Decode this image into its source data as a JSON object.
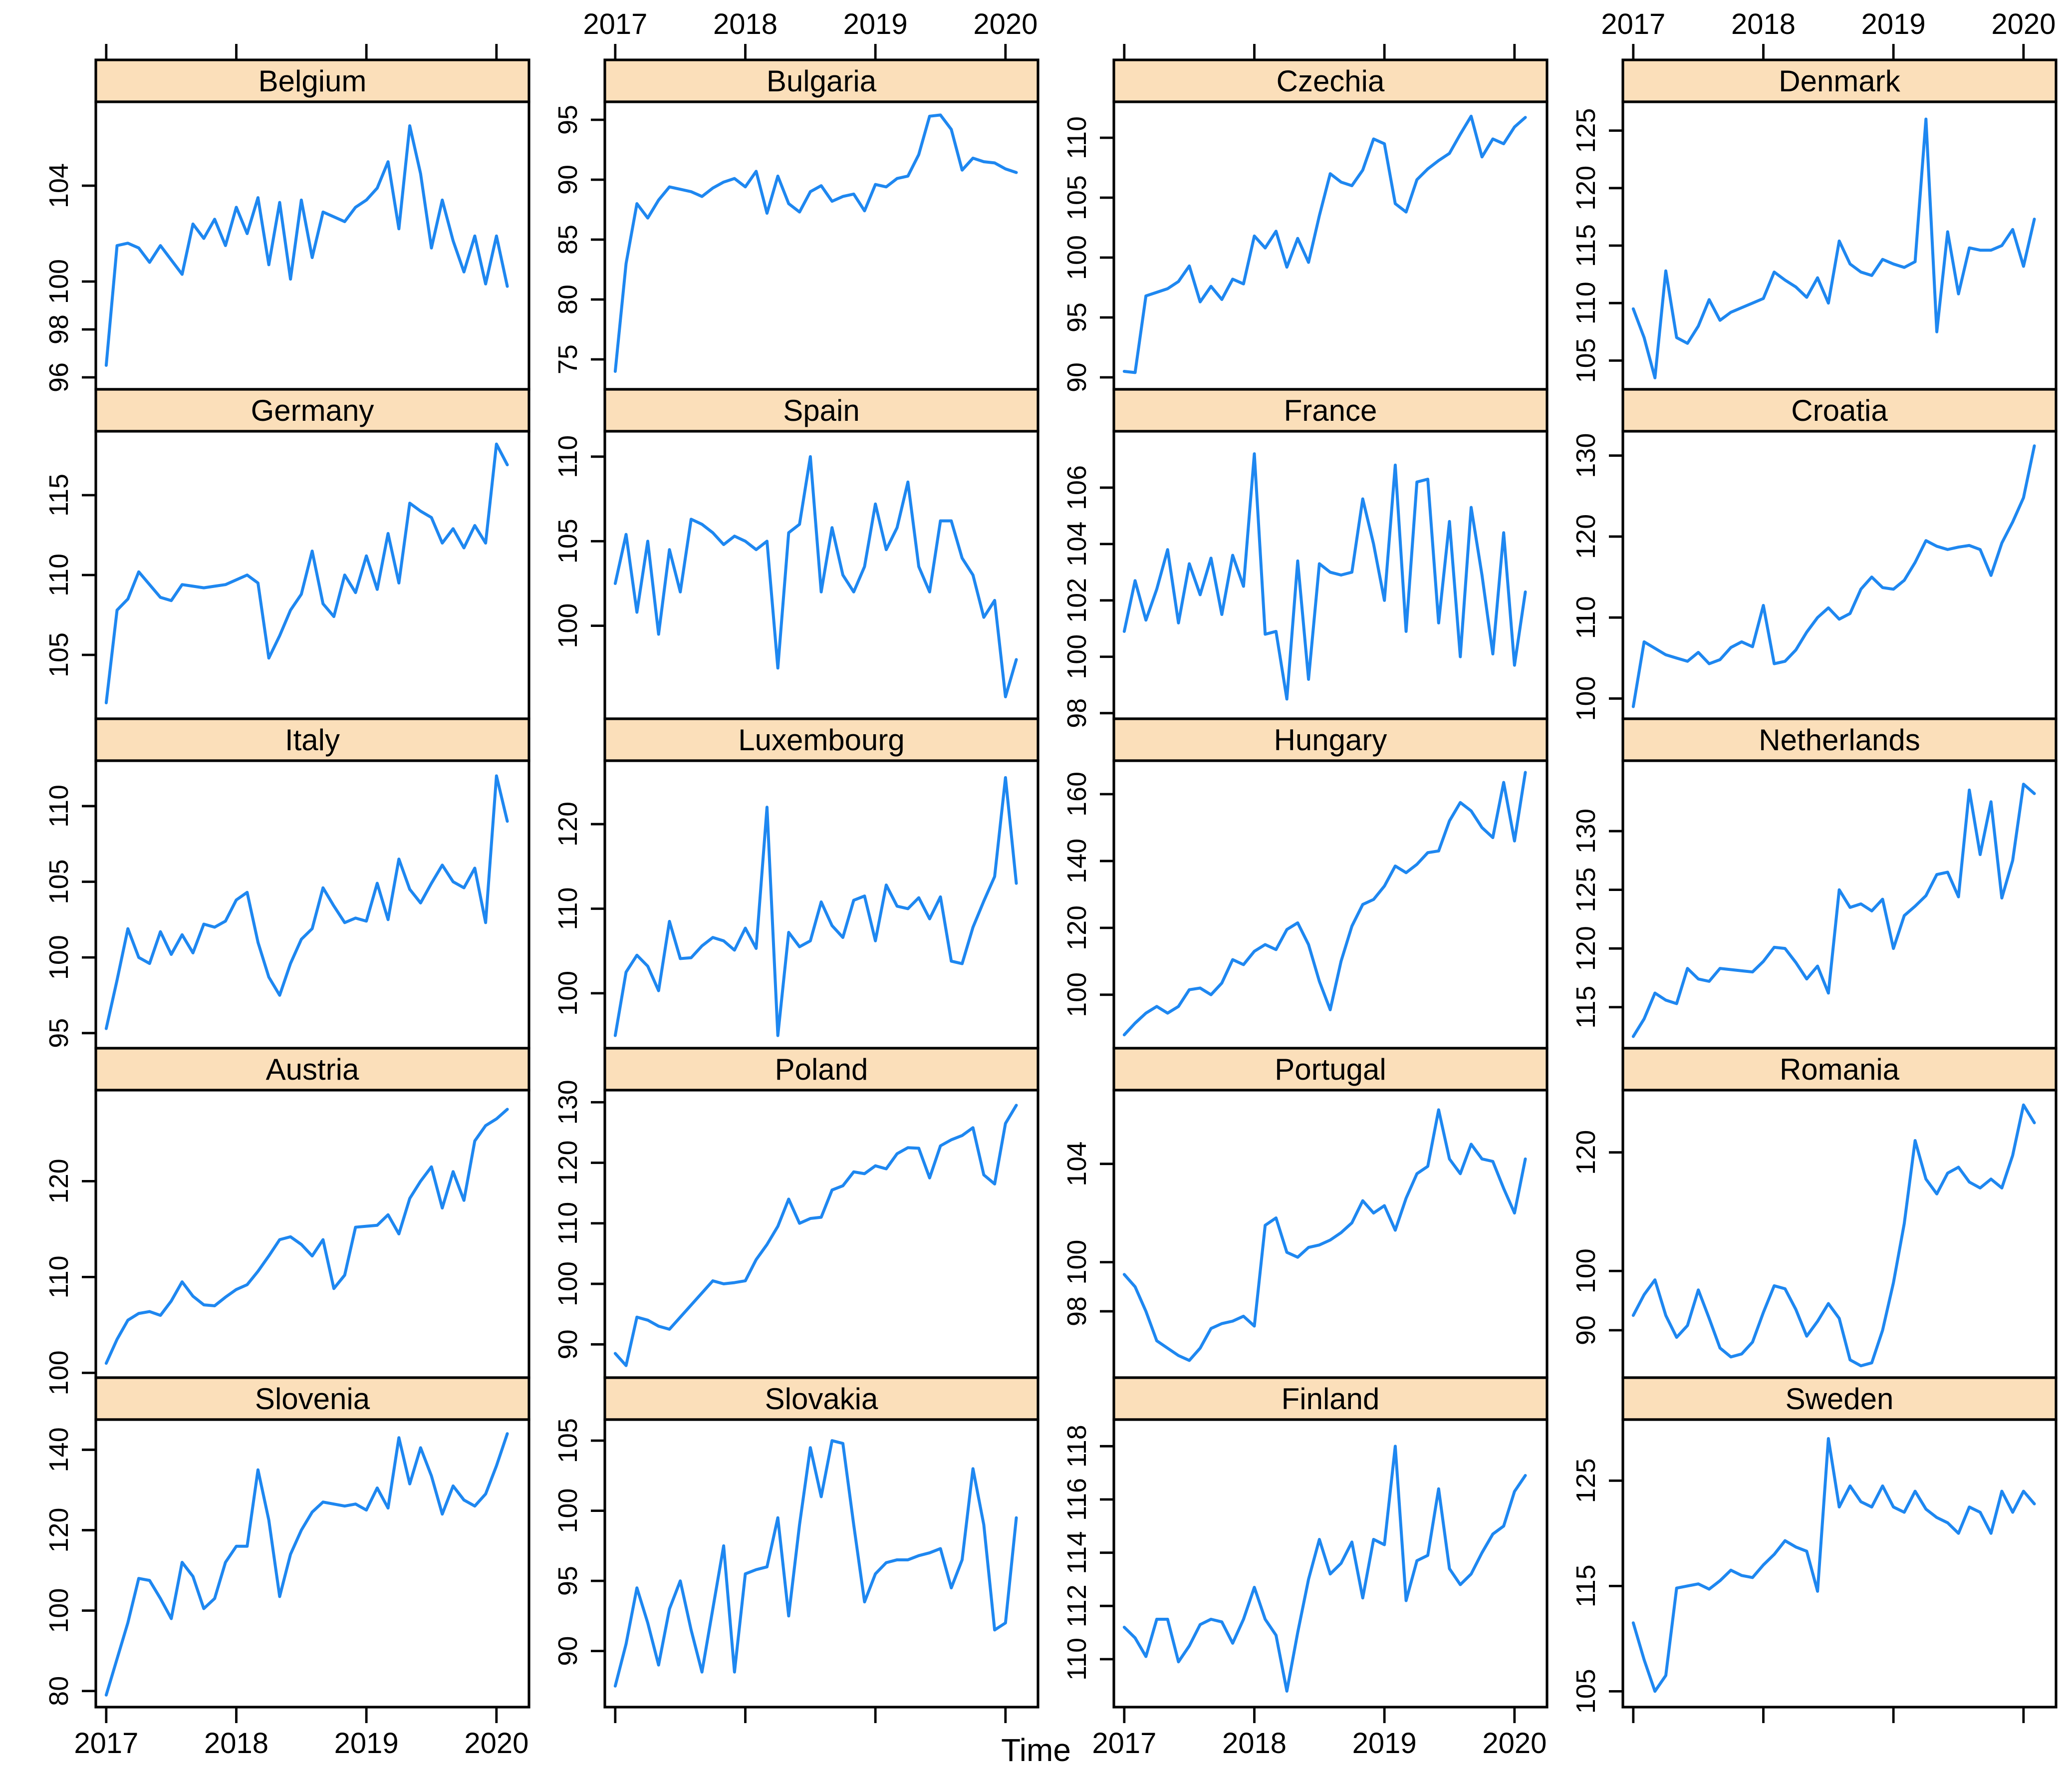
{
  "figure": {
    "xlabel": "Time",
    "background": "#ffffff"
  },
  "colors": {
    "line": "#1E87F0",
    "strip_fill": "#FBDFBA",
    "border": "#000000",
    "panel_fill": "#FFFFFF",
    "text": "#000000"
  },
  "chart_data": {
    "type": "line",
    "title": "",
    "xlabel": "Time",
    "ylabel": "",
    "legend": "none",
    "grid": false,
    "layout": {
      "columns": 4,
      "rows": 5
    },
    "x": {
      "start": 2017.0,
      "step": 0.0833333,
      "lim": [
        2016.92,
        2020.25
      ],
      "ticks": [
        2017,
        2018,
        2019,
        2020
      ],
      "tick_labels": [
        "2017",
        "2018",
        "2019",
        "2020"
      ],
      "top_labeled_columns": [
        1,
        3
      ],
      "bottom_labeled_columns": [
        0,
        2
      ]
    },
    "panels": [
      {
        "country": "Belgium",
        "ylim": [
          95.5,
          107.5
        ],
        "yticks": [
          96,
          98,
          100,
          104
        ],
        "values": [
          96.5,
          101.5,
          101.6,
          101.4,
          100.8,
          101.5,
          100.9,
          100.3,
          102.4,
          101.8,
          102.6,
          101.5,
          103.1,
          102.0,
          103.5,
          100.7,
          103.3,
          100.1,
          103.4,
          101.0,
          102.9,
          102.7,
          102.5,
          103.1,
          103.4,
          103.9,
          105.0,
          102.2,
          106.5,
          104.5,
          101.4,
          103.4,
          101.7,
          100.4,
          101.9,
          99.9,
          101.9,
          99.8
        ]
      },
      {
        "country": "Bulgaria",
        "ylim": [
          72.5,
          96.5
        ],
        "yticks": [
          75,
          80,
          85,
          90,
          95
        ],
        "values": [
          74.0,
          83.0,
          88.0,
          86.8,
          88.3,
          89.4,
          89.2,
          89.0,
          88.6,
          89.3,
          89.8,
          90.1,
          89.4,
          90.7,
          87.2,
          90.3,
          88.0,
          87.3,
          89.0,
          89.5,
          88.2,
          88.6,
          88.8,
          87.4,
          89.6,
          89.4,
          90.1,
          90.3,
          92.1,
          95.3,
          95.4,
          94.2,
          90.8,
          91.8,
          91.5,
          91.4,
          90.9,
          90.6
        ]
      },
      {
        "country": "Czechia",
        "ylim": [
          89.0,
          113.0
        ],
        "yticks": [
          90,
          95,
          100,
          105,
          110
        ],
        "values": [
          90.5,
          90.4,
          96.8,
          97.1,
          97.4,
          98.0,
          99.3,
          96.3,
          97.6,
          96.5,
          98.2,
          97.8,
          101.8,
          100.8,
          102.2,
          99.2,
          101.6,
          99.6,
          103.5,
          107.0,
          106.3,
          106.0,
          107.3,
          109.9,
          109.5,
          104.5,
          103.8,
          106.5,
          107.4,
          108.1,
          108.7,
          110.3,
          111.8,
          108.4,
          109.9,
          109.5,
          110.9,
          111.7
        ]
      },
      {
        "country": "Denmark",
        "ylim": [
          102.5,
          127.5
        ],
        "yticks": [
          105,
          110,
          115,
          120,
          125
        ],
        "values": [
          109.5,
          107.0,
          103.5,
          112.8,
          107.0,
          106.5,
          108.0,
          110.3,
          108.5,
          109.2,
          109.6,
          110.0,
          110.4,
          112.7,
          112.0,
          111.4,
          110.5,
          112.2,
          110.0,
          115.4,
          113.4,
          112.7,
          112.4,
          113.8,
          113.4,
          113.1,
          113.6,
          126.0,
          107.5,
          116.2,
          110.8,
          114.8,
          114.6,
          114.6,
          115.0,
          116.4,
          113.2,
          117.3
        ]
      },
      {
        "country": "Germany",
        "ylim": [
          101.0,
          119.0
        ],
        "yticks": [
          105,
          110,
          115
        ],
        "values": [
          102.0,
          107.8,
          108.5,
          110.2,
          109.4,
          108.6,
          108.4,
          109.4,
          109.3,
          109.2,
          109.3,
          109.4,
          109.7,
          110.0,
          109.5,
          104.8,
          106.2,
          107.8,
          108.8,
          111.5,
          108.2,
          107.4,
          110.0,
          108.9,
          111.2,
          109.1,
          112.6,
          109.5,
          114.5,
          114.0,
          113.6,
          112.0,
          112.9,
          111.7,
          113.1,
          112.0,
          118.2,
          116.9
        ]
      },
      {
        "country": "Spain",
        "ylim": [
          94.5,
          111.5
        ],
        "yticks": [
          100,
          105,
          110
        ],
        "values": [
          102.5,
          105.4,
          100.8,
          105.0,
          99.5,
          104.5,
          102.0,
          106.3,
          106.0,
          105.5,
          104.8,
          105.3,
          105.0,
          104.5,
          105.0,
          97.5,
          105.5,
          106.0,
          110.0,
          102.0,
          105.8,
          103.0,
          102.0,
          103.5,
          107.2,
          104.5,
          105.8,
          108.5,
          103.5,
          102.0,
          106.2,
          106.2,
          104.0,
          103.0,
          100.5,
          101.5,
          95.8,
          98.0
        ]
      },
      {
        "country": "France",
        "ylim": [
          97.8,
          108.0
        ],
        "yticks": [
          98,
          100,
          102,
          104,
          106
        ],
        "values": [
          100.9,
          102.7,
          101.3,
          102.4,
          103.8,
          101.2,
          103.3,
          102.2,
          103.5,
          101.5,
          103.6,
          102.5,
          107.2,
          100.8,
          100.9,
          98.5,
          103.4,
          99.2,
          103.3,
          103.0,
          102.9,
          103.0,
          105.6,
          104.0,
          102.0,
          106.8,
          100.9,
          106.2,
          106.3,
          101.2,
          104.8,
          100.0,
          105.3,
          102.9,
          100.1,
          104.4,
          99.7,
          102.3
        ]
      },
      {
        "country": "Croatia",
        "ylim": [
          97.5,
          133.0
        ],
        "yticks": [
          100,
          110,
          120,
          130
        ],
        "values": [
          99.0,
          107.0,
          106.2,
          105.4,
          105.0,
          104.6,
          105.7,
          104.3,
          104.8,
          106.3,
          107.0,
          106.4,
          111.5,
          104.3,
          104.6,
          106.0,
          108.2,
          110.0,
          111.2,
          109.8,
          110.5,
          113.5,
          115.0,
          113.7,
          113.5,
          114.6,
          116.8,
          119.5,
          118.8,
          118.4,
          118.7,
          118.9,
          118.4,
          115.2,
          119.2,
          121.8,
          124.8,
          131.2
        ]
      },
      {
        "country": "Italy",
        "ylim": [
          94.0,
          113.0
        ],
        "yticks": [
          95,
          100,
          105,
          110
        ],
        "values": [
          95.3,
          98.5,
          101.9,
          100.0,
          99.6,
          101.7,
          100.2,
          101.5,
          100.3,
          102.2,
          102.0,
          102.4,
          103.8,
          104.3,
          101.0,
          98.7,
          97.5,
          99.6,
          101.2,
          101.9,
          104.6,
          103.4,
          102.3,
          102.6,
          102.4,
          104.9,
          102.5,
          106.5,
          104.5,
          103.6,
          104.9,
          106.1,
          105.0,
          104.6,
          105.9,
          102.3,
          112.0,
          109.0
        ]
      },
      {
        "country": "Luxembourg",
        "ylim": [
          93.5,
          127.5
        ],
        "yticks": [
          100,
          110,
          120
        ],
        "values": [
          95.0,
          102.5,
          104.5,
          103.2,
          100.3,
          108.5,
          104.1,
          104.2,
          105.6,
          106.6,
          106.2,
          105.1,
          107.7,
          105.3,
          122.0,
          95.0,
          107.2,
          105.5,
          106.2,
          110.8,
          108.0,
          106.6,
          111.0,
          111.5,
          106.2,
          112.8,
          110.3,
          110.0,
          111.3,
          108.8,
          111.4,
          103.8,
          103.5,
          107.8,
          110.9,
          113.8,
          125.5,
          113.0
        ]
      },
      {
        "country": "Hungary",
        "ylim": [
          84.0,
          170.0
        ],
        "yticks": [
          100,
          120,
          140,
          160
        ],
        "values": [
          88.0,
          91.5,
          94.5,
          96.5,
          94.5,
          96.5,
          101.5,
          102.0,
          100.0,
          103.5,
          110.5,
          109.0,
          113.0,
          115.0,
          113.5,
          119.5,
          121.5,
          115.0,
          104.0,
          95.5,
          110.0,
          120.5,
          127.0,
          128.5,
          132.5,
          138.5,
          136.5,
          139.0,
          142.5,
          143.0,
          152.0,
          157.5,
          155.0,
          150.0,
          147.0,
          163.5,
          146.0,
          166.5
        ]
      },
      {
        "country": "Netherlands",
        "ylim": [
          111.5,
          136.0
        ],
        "yticks": [
          115,
          120,
          125,
          130
        ],
        "values": [
          112.5,
          114.0,
          116.2,
          115.6,
          115.3,
          118.3,
          117.4,
          117.2,
          118.3,
          118.2,
          118.1,
          118.0,
          118.9,
          120.1,
          120.0,
          118.8,
          117.4,
          118.5,
          116.2,
          125.0,
          123.5,
          123.8,
          123.2,
          124.2,
          120.0,
          122.8,
          123.6,
          124.5,
          126.3,
          126.5,
          124.4,
          133.5,
          128.0,
          132.5,
          124.3,
          127.5,
          134.0,
          133.2
        ]
      },
      {
        "country": "Austria",
        "ylim": [
          99.5,
          129.5
        ],
        "yticks": [
          100,
          110,
          120
        ],
        "values": [
          101.0,
          103.5,
          105.5,
          106.2,
          106.4,
          106.0,
          107.5,
          109.5,
          108.0,
          107.1,
          107.0,
          107.9,
          108.7,
          109.2,
          110.6,
          112.2,
          113.9,
          114.2,
          113.4,
          112.2,
          113.9,
          108.8,
          110.2,
          115.2,
          115.3,
          115.4,
          116.5,
          114.5,
          118.2,
          120.0,
          121.5,
          117.2,
          121.0,
          118.0,
          124.2,
          125.8,
          126.5,
          127.5
        ]
      },
      {
        "country": "Poland",
        "ylim": [
          84.5,
          132.0
        ],
        "yticks": [
          90,
          100,
          110,
          120,
          130
        ],
        "values": [
          88.5,
          86.5,
          94.5,
          94.0,
          93.0,
          92.5,
          94.5,
          96.5,
          98.5,
          100.5,
          100.0,
          100.2,
          100.5,
          104.0,
          106.5,
          109.5,
          114.0,
          110.0,
          110.8,
          111.0,
          115.5,
          116.2,
          118.5,
          118.2,
          119.5,
          119.0,
          121.5,
          122.5,
          122.4,
          117.5,
          122.8,
          123.8,
          124.5,
          125.8,
          118.0,
          116.5,
          126.5,
          129.5
        ]
      },
      {
        "country": "Portugal",
        "ylim": [
          95.3,
          107.0
        ],
        "yticks": [
          98,
          100,
          104
        ],
        "values": [
          99.5,
          99.0,
          98.0,
          96.8,
          96.5,
          96.2,
          96.0,
          96.5,
          97.3,
          97.5,
          97.6,
          97.8,
          97.4,
          101.5,
          101.8,
          100.4,
          100.2,
          100.6,
          100.7,
          100.9,
          101.2,
          101.6,
          102.5,
          102.0,
          102.3,
          101.3,
          102.6,
          103.6,
          103.9,
          106.2,
          104.2,
          103.6,
          104.8,
          104.2,
          104.1,
          103.0,
          102.0,
          104.2
        ]
      },
      {
        "country": "Romania",
        "ylim": [
          82.0,
          130.5
        ],
        "yticks": [
          90,
          100,
          120
        ],
        "values": [
          92.5,
          96.0,
          98.5,
          92.5,
          88.8,
          90.8,
          96.8,
          92.0,
          87.0,
          85.5,
          86.0,
          88.0,
          93.0,
          97.5,
          97.0,
          93.5,
          89.0,
          91.5,
          94.5,
          92.0,
          85.0,
          84.0,
          84.5,
          90.0,
          98.0,
          108.0,
          122.0,
          115.5,
          113.0,
          116.5,
          117.5,
          115.0,
          114.0,
          115.5,
          114.0,
          119.5,
          128.0,
          125.0
        ]
      },
      {
        "country": "Slovenia",
        "ylim": [
          76.0,
          147.5
        ],
        "yticks": [
          80,
          100,
          120,
          140
        ],
        "values": [
          79.0,
          88.0,
          97.0,
          108.0,
          107.5,
          103.0,
          98.0,
          112.0,
          108.5,
          100.5,
          103.0,
          112.0,
          116.0,
          116.0,
          135.0,
          122.5,
          103.5,
          114.0,
          120.0,
          124.5,
          127.0,
          126.5,
          126.0,
          126.5,
          125.0,
          130.5,
          125.5,
          143.0,
          131.5,
          140.5,
          133.5,
          124.0,
          131.0,
          127.5,
          126.0,
          129.0,
          136.0,
          144.0
        ]
      },
      {
        "country": "Slovakia",
        "ylim": [
          86.0,
          106.5
        ],
        "yticks": [
          90,
          95,
          100,
          105
        ],
        "values": [
          87.5,
          90.5,
          94.5,
          92.0,
          89.0,
          93.0,
          95.0,
          91.5,
          88.5,
          93.0,
          97.5,
          88.5,
          95.5,
          95.8,
          96.0,
          99.5,
          92.5,
          99.0,
          104.5,
          101.0,
          105.0,
          104.8,
          99.0,
          93.5,
          95.5,
          96.3,
          96.5,
          96.5,
          96.8,
          97.0,
          97.3,
          94.5,
          96.5,
          103.0,
          99.0,
          91.5,
          92.0,
          99.5
        ]
      },
      {
        "country": "Finland",
        "ylim": [
          108.2,
          119.0
        ],
        "yticks": [
          110,
          112,
          114,
          116,
          118
        ],
        "values": [
          111.2,
          110.8,
          110.1,
          111.5,
          111.5,
          109.9,
          110.5,
          111.3,
          111.5,
          111.4,
          110.6,
          111.5,
          112.7,
          111.5,
          110.9,
          108.8,
          111.0,
          113.0,
          114.5,
          113.2,
          113.6,
          114.4,
          112.3,
          114.5,
          114.3,
          118.0,
          112.2,
          113.7,
          113.9,
          116.4,
          113.4,
          112.8,
          113.2,
          114.0,
          114.7,
          115.0,
          116.3,
          116.9
        ]
      },
      {
        "country": "Sweden",
        "ylim": [
          103.5,
          130.8
        ],
        "yticks": [
          105,
          115,
          125
        ],
        "values": [
          111.5,
          108.0,
          105.0,
          106.5,
          114.8,
          115.0,
          115.2,
          114.7,
          115.5,
          116.5,
          116.0,
          115.8,
          117.0,
          118.0,
          119.3,
          118.7,
          118.3,
          114.5,
          129.0,
          122.5,
          124.5,
          123.0,
          122.5,
          124.5,
          122.5,
          122.0,
          124.0,
          122.3,
          121.5,
          121.0,
          120.0,
          122.5,
          122.0,
          120.0,
          124.0,
          122.0,
          124.0,
          122.8
        ]
      }
    ]
  }
}
